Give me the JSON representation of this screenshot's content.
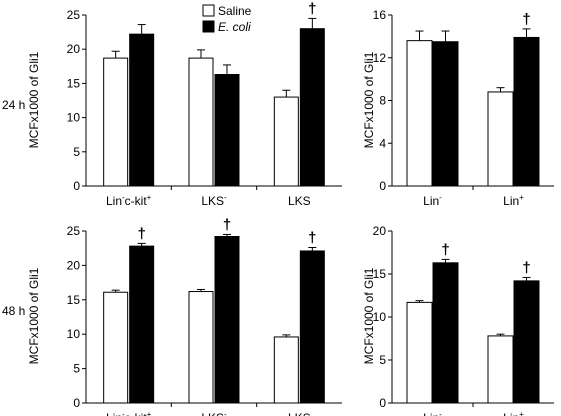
{
  "figure": {
    "row_labels": [
      "24 h",
      "48 h"
    ],
    "legend": [
      {
        "label": "Saline",
        "fill": "#ffffff"
      },
      {
        "label": "E. coli",
        "fill": "#000000"
      }
    ],
    "significance_marker": "†"
  },
  "chart_data": [
    {
      "type": "bar",
      "row_label": "24 h",
      "ylabel": "MCFx1000 of Gli1",
      "ylim": [
        0,
        25
      ],
      "yticks": [
        0,
        5,
        10,
        15,
        20,
        25
      ],
      "categories": [
        {
          "base": "Lin",
          "sup": "-",
          "rest": "c-kit",
          "sup2": "+"
        },
        {
          "base": "LKS",
          "sup": "-",
          "rest": "",
          "sup2": ""
        },
        {
          "base": "LKS",
          "sup": "",
          "rest": "",
          "sup2": ""
        }
      ],
      "series": [
        {
          "name": "Saline",
          "fill": "#ffffff",
          "values": [
            18.7,
            18.7,
            13.0
          ],
          "errors": [
            1.0,
            1.2,
            1.0
          ]
        },
        {
          "name": "E. coli",
          "fill": "#000000",
          "values": [
            22.2,
            16.3,
            23.0
          ],
          "errors": [
            1.4,
            1.4,
            1.5
          ]
        }
      ],
      "significant": [
        false,
        false,
        true
      ]
    },
    {
      "type": "bar",
      "row_label": "24 h",
      "ylabel": "MCFx1000 of Gli1",
      "ylim": [
        0,
        16
      ],
      "yticks": [
        0,
        4,
        8,
        12,
        16
      ],
      "categories": [
        {
          "base": "Lin",
          "sup": "-",
          "rest": "",
          "sup2": ""
        },
        {
          "base": "Lin",
          "sup": "+",
          "rest": "",
          "sup2": ""
        }
      ],
      "series": [
        {
          "name": "Saline",
          "fill": "#ffffff",
          "values": [
            13.6,
            8.8
          ],
          "errors": [
            0.9,
            0.4
          ]
        },
        {
          "name": "E. coli",
          "fill": "#000000",
          "values": [
            13.5,
            13.9
          ],
          "errors": [
            1.0,
            0.8
          ]
        }
      ],
      "significant": [
        false,
        true
      ]
    },
    {
      "type": "bar",
      "row_label": "48 h",
      "ylabel": "MCFx1000 of Gli1",
      "ylim": [
        0,
        25
      ],
      "yticks": [
        0,
        5,
        10,
        15,
        20,
        25
      ],
      "categories": [
        {
          "base": "Lin",
          "sup": "-",
          "rest": "c-kit",
          "sup2": "+"
        },
        {
          "base": "LKS",
          "sup": "-",
          "rest": "",
          "sup2": ""
        },
        {
          "base": "LKS",
          "sup": "",
          "rest": "",
          "sup2": ""
        }
      ],
      "series": [
        {
          "name": "Saline",
          "fill": "#ffffff",
          "values": [
            16.1,
            16.2,
            9.6
          ],
          "errors": [
            0.3,
            0.3,
            0.3
          ]
        },
        {
          "name": "E. coli",
          "fill": "#000000",
          "values": [
            22.8,
            24.2,
            22.1
          ],
          "errors": [
            0.4,
            0.3,
            0.5
          ]
        }
      ],
      "significant": [
        true,
        true,
        true
      ]
    },
    {
      "type": "bar",
      "row_label": "48 h",
      "ylabel": "MCFx1000 of Gli1",
      "ylim": [
        0,
        20
      ],
      "yticks": [
        0,
        5,
        10,
        15,
        20
      ],
      "categories": [
        {
          "base": "Lin",
          "sup": "-",
          "rest": "",
          "sup2": ""
        },
        {
          "base": "Lin",
          "sup": "+",
          "rest": "",
          "sup2": ""
        }
      ],
      "series": [
        {
          "name": "Saline",
          "fill": "#ffffff",
          "values": [
            11.7,
            7.8
          ],
          "errors": [
            0.2,
            0.2
          ]
        },
        {
          "name": "E. coli",
          "fill": "#000000",
          "values": [
            16.3,
            14.2
          ],
          "errors": [
            0.4,
            0.4
          ]
        }
      ],
      "significant": [
        true,
        true
      ]
    }
  ]
}
